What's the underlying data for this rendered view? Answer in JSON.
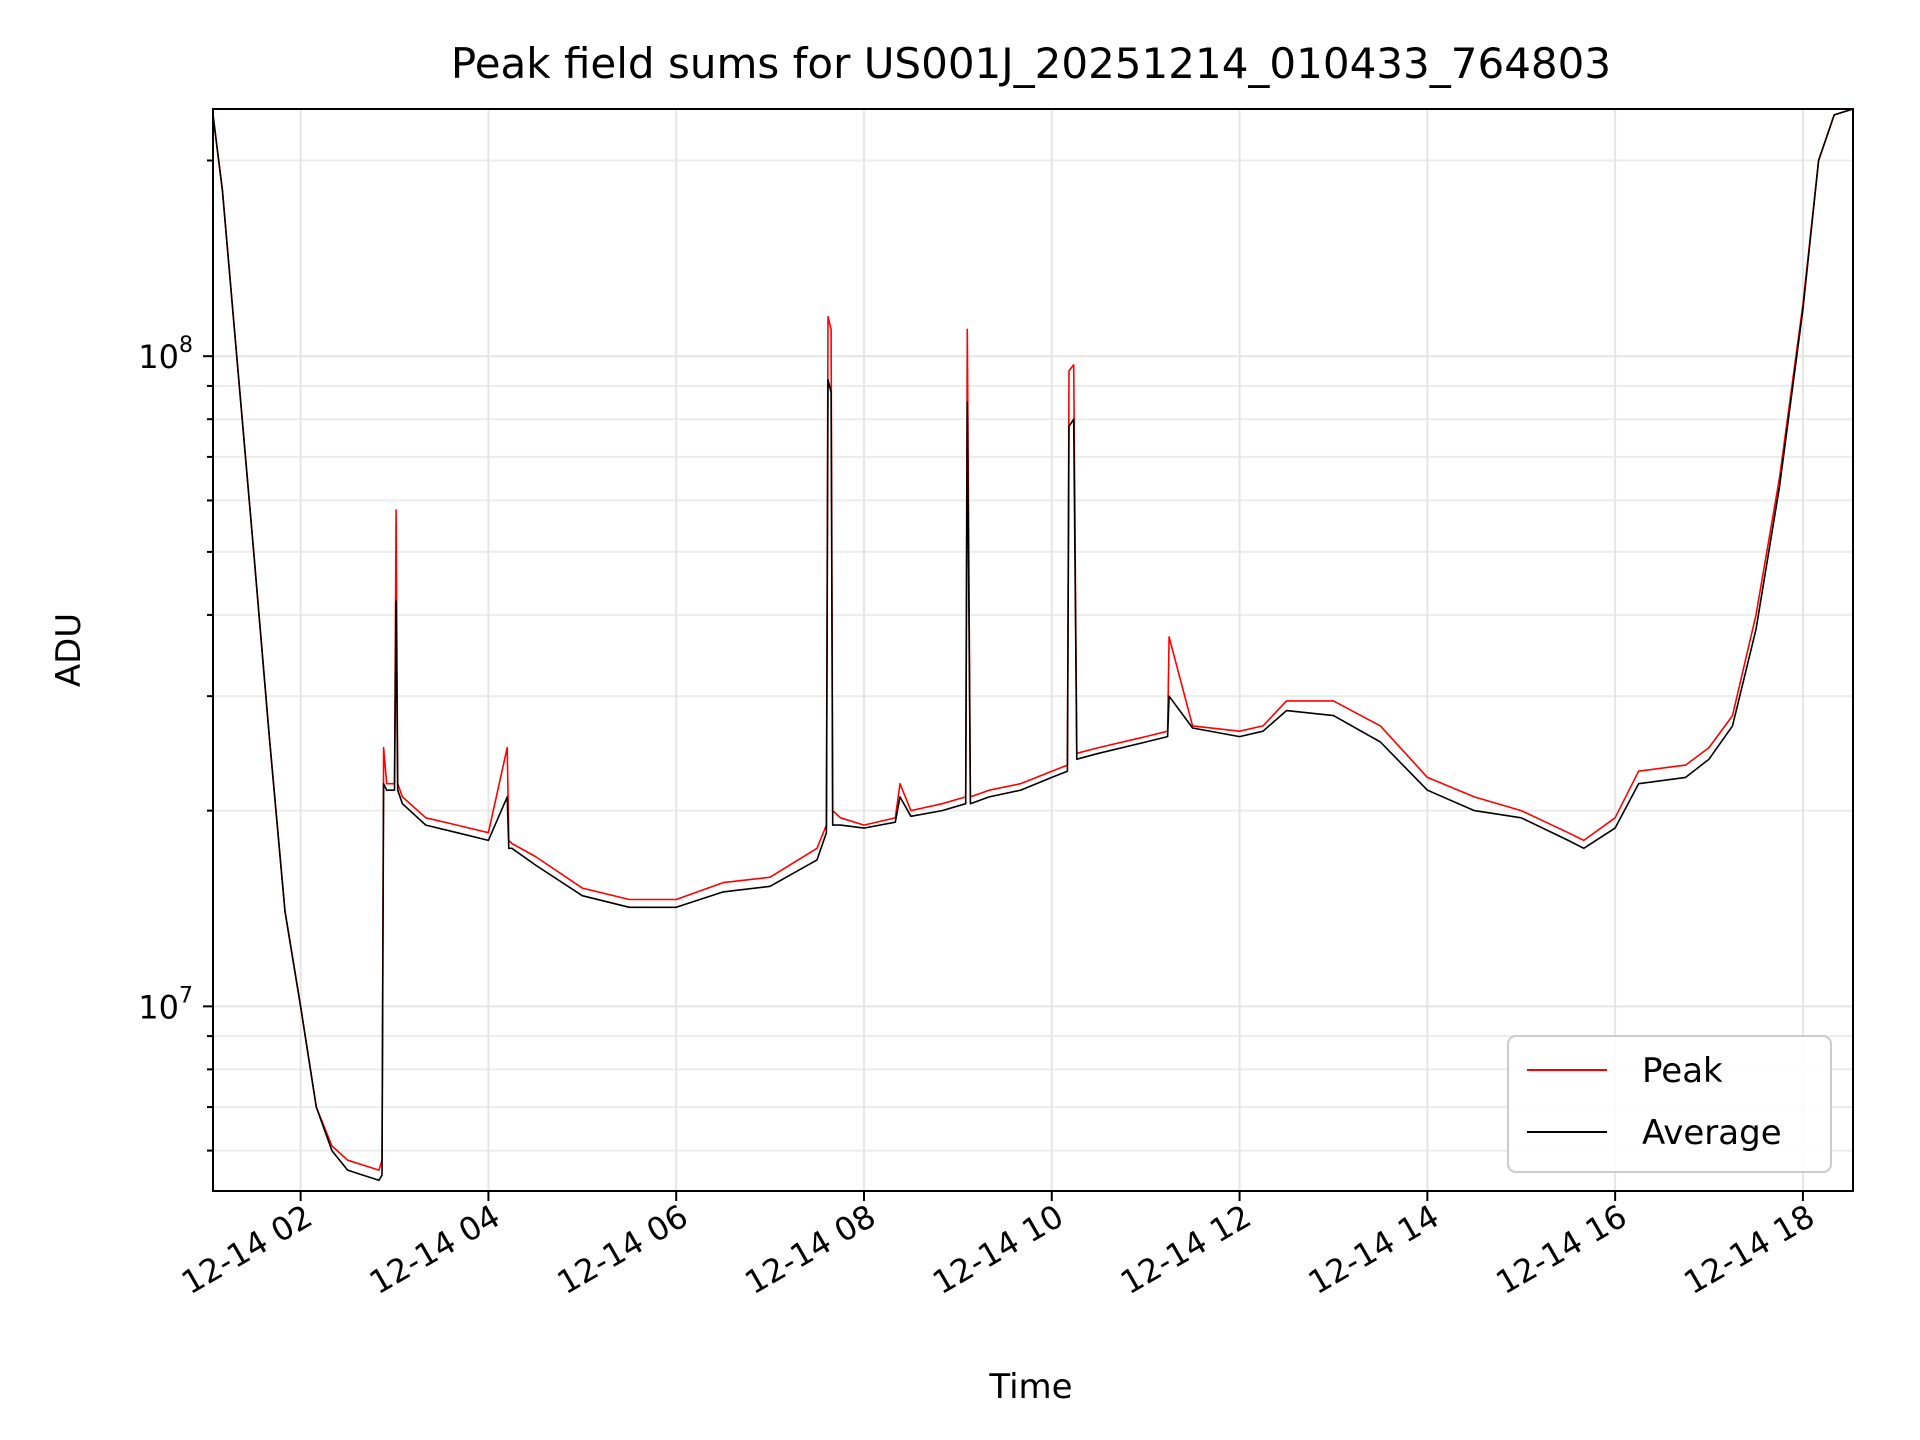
{
  "chart_data": {
    "type": "line",
    "title": "Peak field sums for US001J_20251214_010433_764803",
    "xlabel": "Time",
    "ylabel": "ADU",
    "yscale": "log",
    "xlim": [
      "2025-12-14 01:04",
      "2025-12-14 18:32"
    ],
    "ylim": [
      5200000,
      240000000
    ],
    "grid": true,
    "legend_position": "lower-right",
    "x_ticks": [
      {
        "value": "2025-12-14 02:00",
        "label": "12-14 02"
      },
      {
        "value": "2025-12-14 04:00",
        "label": "12-14 04"
      },
      {
        "value": "2025-12-14 06:00",
        "label": "12-14 06"
      },
      {
        "value": "2025-12-14 08:00",
        "label": "12-14 08"
      },
      {
        "value": "2025-12-14 10:00",
        "label": "12-14 10"
      },
      {
        "value": "2025-12-14 12:00",
        "label": "12-14 12"
      },
      {
        "value": "2025-12-14 14:00",
        "label": "12-14 14"
      },
      {
        "value": "2025-12-14 16:00",
        "label": "12-14 16"
      },
      {
        "value": "2025-12-14 18:00",
        "label": "12-14 18"
      }
    ],
    "y_ticks": [
      {
        "value": 10000000,
        "base": "10",
        "exp": "7"
      },
      {
        "value": 100000000,
        "base": "10",
        "exp": "8"
      }
    ],
    "x": [
      "2025-12-14 01:04",
      "2025-12-14 01:10",
      "2025-12-14 01:20",
      "2025-12-14 01:30",
      "2025-12-14 01:40",
      "2025-12-14 01:50",
      "2025-12-14 02:00",
      "2025-12-14 02:10",
      "2025-12-14 02:20",
      "2025-12-14 02:30",
      "2025-12-14 02:40",
      "2025-12-14 02:50",
      "2025-12-14 02:52",
      "2025-12-14 02:53",
      "2025-12-14 02:55",
      "2025-12-14 03:00",
      "2025-12-14 03:01",
      "2025-12-14 03:02",
      "2025-12-14 03:05",
      "2025-12-14 03:20",
      "2025-12-14 03:40",
      "2025-12-14 04:00",
      "2025-12-14 04:12",
      "2025-12-14 04:13",
      "2025-12-14 04:15",
      "2025-12-14 04:30",
      "2025-12-14 05:00",
      "2025-12-14 05:30",
      "2025-12-14 06:00",
      "2025-12-14 06:30",
      "2025-12-14 07:00",
      "2025-12-14 07:30",
      "2025-12-14 07:36",
      "2025-12-14 07:37",
      "2025-12-14 07:39",
      "2025-12-14 07:40",
      "2025-12-14 07:45",
      "2025-12-14 08:00",
      "2025-12-14 08:20",
      "2025-12-14 08:23",
      "2025-12-14 08:30",
      "2025-12-14 08:50",
      "2025-12-14 09:05",
      "2025-12-14 09:06",
      "2025-12-14 09:08",
      "2025-12-14 09:20",
      "2025-12-14 09:40",
      "2025-12-14 10:00",
      "2025-12-14 10:10",
      "2025-12-14 10:11",
      "2025-12-14 10:14",
      "2025-12-14 10:16",
      "2025-12-14 10:30",
      "2025-12-14 11:00",
      "2025-12-14 11:14",
      "2025-12-14 11:15",
      "2025-12-14 11:30",
      "2025-12-14 12:00",
      "2025-12-14 12:15",
      "2025-12-14 12:30",
      "2025-12-14 13:00",
      "2025-12-14 13:30",
      "2025-12-14 14:00",
      "2025-12-14 14:30",
      "2025-12-14 15:00",
      "2025-12-14 15:30",
      "2025-12-14 15:40",
      "2025-12-14 16:00",
      "2025-12-14 16:15",
      "2025-12-14 16:45",
      "2025-12-14 17:00",
      "2025-12-14 17:15",
      "2025-12-14 17:30",
      "2025-12-14 17:45",
      "2025-12-14 18:00",
      "2025-12-14 18:10",
      "2025-12-14 18:20",
      "2025-12-14 18:32"
    ],
    "series": [
      {
        "name": "Peak",
        "color": "#ff0000",
        "values": [
          235000000,
          180000000,
          95000000,
          50000000,
          26000000,
          14000000,
          10000000,
          7000000,
          6100000,
          5800000,
          5700000,
          5600000,
          5800000,
          25000000,
          22000000,
          22000000,
          58000000,
          22000000,
          21000000,
          19500000,
          19000000,
          18500000,
          25000000,
          18000000,
          17800000,
          17000000,
          15200000,
          14600000,
          14600000,
          15500000,
          15800000,
          17500000,
          19000000,
          115000000,
          110000000,
          20000000,
          19500000,
          19000000,
          19500000,
          22000000,
          20000000,
          20500000,
          21000000,
          110000000,
          21000000,
          21500000,
          22000000,
          23000000,
          23500000,
          95000000,
          97000000,
          24500000,
          25000000,
          26000000,
          26500000,
          37000000,
          27000000,
          26500000,
          27000000,
          29500000,
          29500000,
          27000000,
          22500000,
          21000000,
          20000000,
          18500000,
          18000000,
          19500000,
          23000000,
          23500000,
          25000000,
          28000000,
          40000000,
          65000000,
          120000000,
          200000000,
          235000000,
          240000000
        ]
      },
      {
        "name": "Average",
        "color": "#000000",
        "values": [
          235000000,
          180000000,
          95000000,
          50000000,
          26000000,
          14000000,
          10000000,
          7000000,
          6000000,
          5600000,
          5500000,
          5400000,
          5500000,
          22000000,
          21500000,
          21500000,
          42000000,
          21500000,
          20500000,
          19000000,
          18500000,
          18000000,
          21000000,
          17500000,
          17500000,
          16500000,
          14800000,
          14200000,
          14200000,
          15000000,
          15300000,
          16800000,
          18500000,
          92000000,
          88000000,
          19000000,
          19000000,
          18800000,
          19200000,
          21000000,
          19600000,
          20000000,
          20500000,
          85000000,
          20500000,
          21000000,
          21500000,
          22500000,
          23000000,
          78000000,
          80000000,
          24000000,
          24500000,
          25500000,
          26000000,
          30000000,
          26800000,
          26000000,
          26500000,
          28500000,
          28000000,
          25500000,
          21500000,
          20000000,
          19500000,
          18000000,
          17500000,
          18800000,
          22000000,
          22500000,
          24000000,
          27000000,
          38000000,
          63000000,
          118000000,
          200000000,
          235000000,
          240000000
        ]
      }
    ]
  }
}
